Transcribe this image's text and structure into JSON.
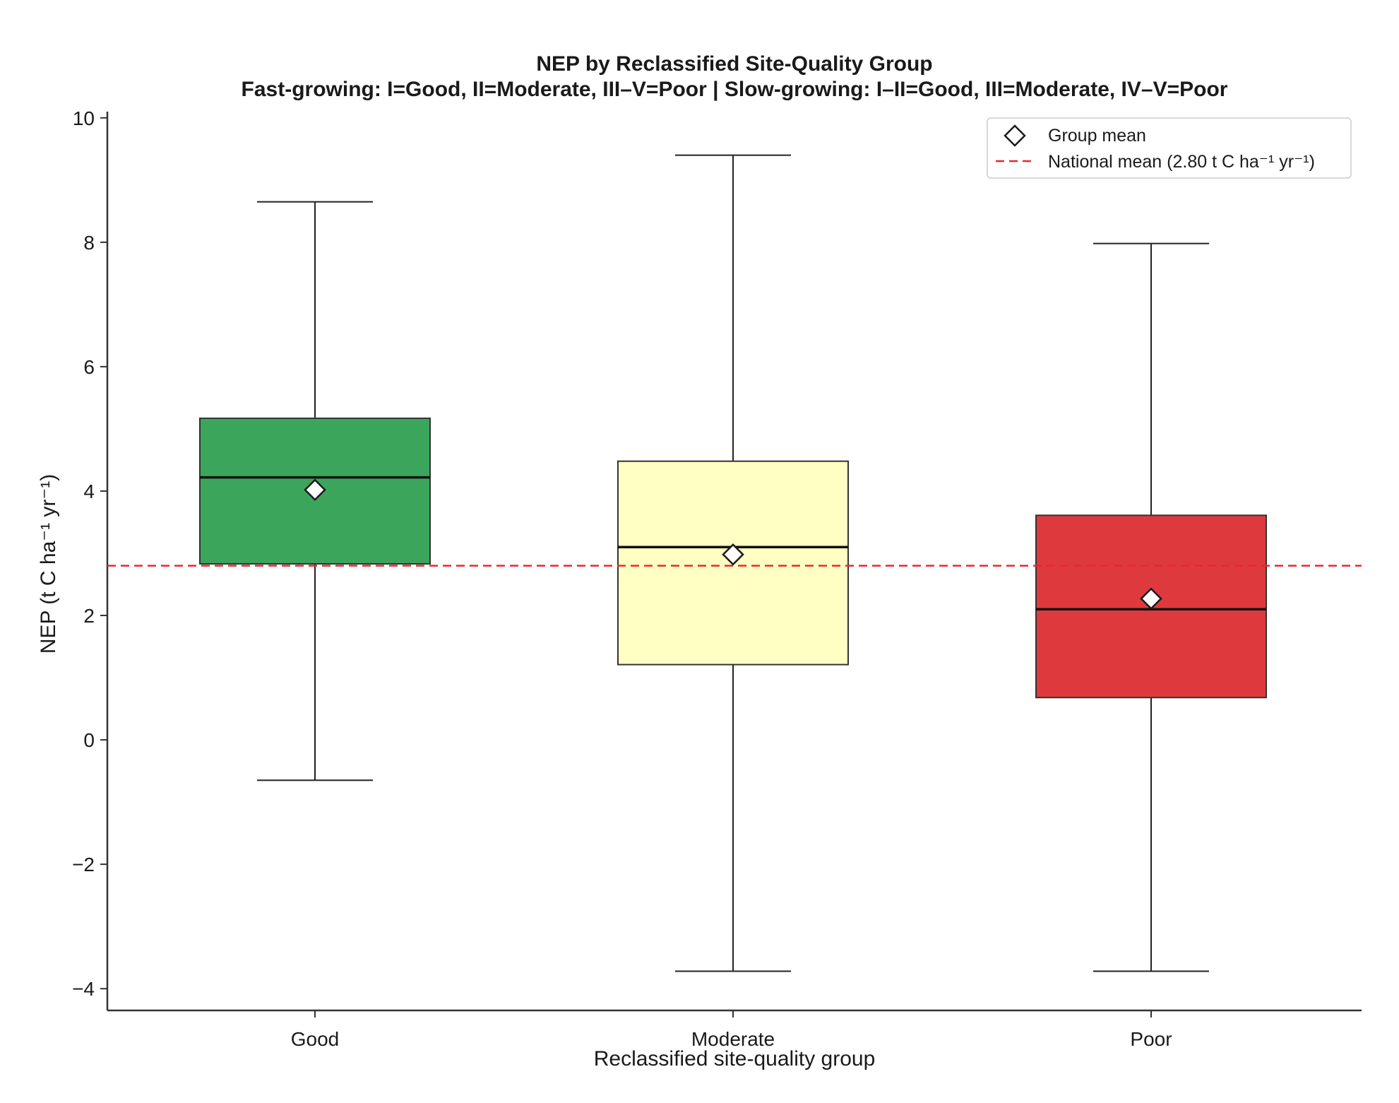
{
  "chart_data": {
    "type": "box",
    "title": "NEP by Reclassified Site-Quality Group",
    "subtitle": "Fast-growing: I=Good, II=Moderate, III–V=Poor | Slow-growing: I–II=Good, III=Moderate, IV–V=Poor",
    "xlabel": "Reclassified site-quality group",
    "ylabel": "NEP (t C ha⁻¹ yr⁻¹)",
    "ylim": [
      -4.35,
      10.1
    ],
    "yticks": [
      -4,
      -2,
      0,
      2,
      4,
      6,
      8,
      10
    ],
    "ytick_labels": [
      "−4",
      "−2",
      "0",
      "2",
      "4",
      "6",
      "8",
      "10"
    ],
    "categories": [
      "Good",
      "Moderate",
      "Poor"
    ],
    "boxes": [
      {
        "category": "Good",
        "whisker_low": -0.65,
        "q1": 2.83,
        "median": 4.22,
        "q3": 5.17,
        "whisker_high": 8.65,
        "mean": 4.02,
        "color": "#3ca55c"
      },
      {
        "category": "Moderate",
        "whisker_low": -3.72,
        "q1": 1.21,
        "median": 3.1,
        "q3": 4.48,
        "whisker_high": 9.4,
        "mean": 2.98,
        "color": "#ffffc4"
      },
      {
        "category": "Poor",
        "whisker_low": -3.72,
        "q1": 0.68,
        "median": 2.1,
        "q3": 3.61,
        "whisker_high": 7.98,
        "mean": 2.27,
        "color": "#de3a3e"
      }
    ],
    "reference_line": {
      "value": 2.8,
      "color": "#e8292b",
      "style": "dashed"
    },
    "legend": {
      "position": "top-right",
      "entries": [
        {
          "marker": "diamond-icon",
          "label": "Group mean"
        },
        {
          "marker": "dashed-line",
          "label": "National mean (2.80 t C ha⁻¹ yr⁻¹)"
        }
      ]
    },
    "grid": false
  }
}
